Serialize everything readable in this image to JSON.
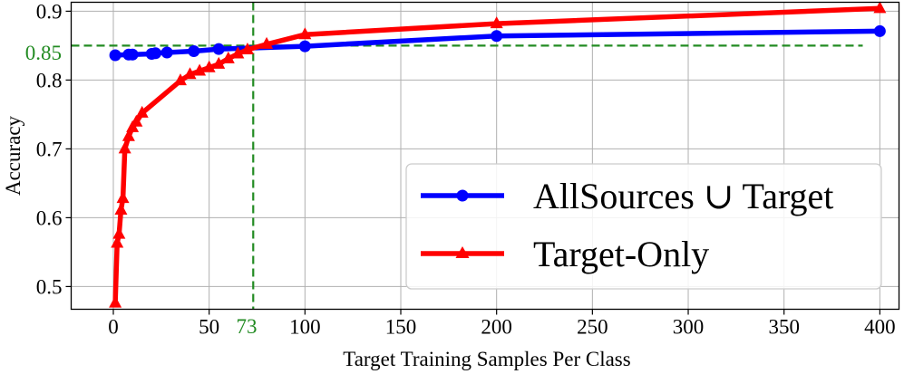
{
  "chart_data": {
    "type": "line",
    "xlabel": "Target Training Samples Per Class",
    "ylabel": "Accuracy",
    "xlim": [
      -22,
      410
    ],
    "ylim": [
      0.467,
      0.913
    ],
    "xticks": [
      0,
      50,
      100,
      150,
      200,
      250,
      300,
      350,
      400
    ],
    "xtick_labels": [
      "0",
      "50",
      "100",
      "150",
      "200",
      "250",
      "300",
      "350",
      "400"
    ],
    "yticks": [
      0.5,
      0.6,
      0.7,
      0.8,
      0.9
    ],
    "ytick_labels": [
      "0.5",
      "0.6",
      "0.7",
      "0.8",
      "0.9"
    ],
    "grid": true,
    "legend_position": "bottom-right",
    "series": [
      {
        "name": "AllSources ∪ Target",
        "color": "#0000ff",
        "marker": "circle",
        "x": [
          1,
          8,
          10,
          20,
          22,
          28,
          42,
          55,
          100,
          200,
          400
        ],
        "y": [
          0.836,
          0.837,
          0.837,
          0.838,
          0.839,
          0.84,
          0.842,
          0.845,
          0.849,
          0.864,
          0.871
        ]
      },
      {
        "name": "Target-Only",
        "color": "#ff0000",
        "marker": "triangle",
        "x": [
          1,
          2,
          3,
          4,
          5,
          6,
          8,
          10,
          12,
          15,
          35,
          40,
          45,
          50,
          55,
          60,
          65,
          70,
          80,
          100,
          200,
          400
        ],
        "y": [
          0.476,
          0.563,
          0.576,
          0.611,
          0.628,
          0.7,
          0.718,
          0.731,
          0.739,
          0.752,
          0.799,
          0.808,
          0.813,
          0.818,
          0.823,
          0.831,
          0.838,
          0.844,
          0.852,
          0.866,
          0.882,
          0.904
        ]
      }
    ],
    "annotations": [
      {
        "label": "0.85",
        "axis": "y",
        "value": 0.85,
        "color": "#228b22"
      },
      {
        "label": "73",
        "axis": "x",
        "value": 73,
        "color": "#228b22"
      }
    ]
  }
}
